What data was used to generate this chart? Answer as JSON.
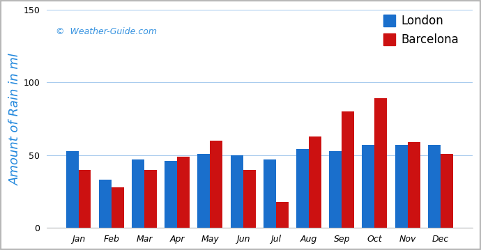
{
  "months": [
    "Jan",
    "Feb",
    "Mar",
    "Apr",
    "May",
    "Jun",
    "Jul",
    "Aug",
    "Sep",
    "Oct",
    "Nov",
    "Dec"
  ],
  "london": [
    53,
    33,
    47,
    46,
    51,
    50,
    47,
    54,
    53,
    57,
    57,
    57
  ],
  "barcelona": [
    40,
    28,
    40,
    49,
    60,
    40,
    18,
    63,
    80,
    89,
    59,
    51
  ],
  "london_color": "#1a6fcc",
  "barcelona_color": "#cc1111",
  "ylabel": "Amount of Rain in ml",
  "ylim": [
    0,
    150
  ],
  "yticks": [
    0,
    50,
    100,
    150
  ],
  "watermark": "©  Weather-Guide.com",
  "legend_london": "London",
  "legend_barcelona": "Barcelona",
  "bg_color": "#ffffff",
  "grid_color": "#aaccee",
  "ylabel_color": "#2288dd",
  "bar_width": 0.38,
  "border_color": "#aaaaaa"
}
